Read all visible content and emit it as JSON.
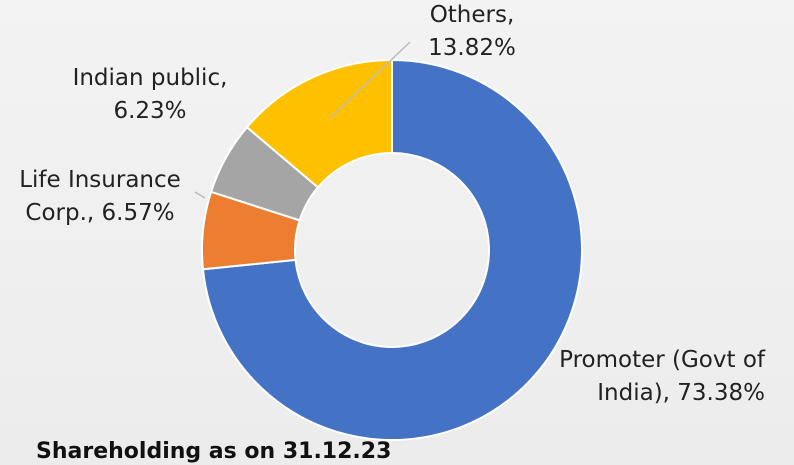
{
  "chart_data": {
    "type": "donut",
    "title": "Shareholding as on 31.12.23",
    "values": [
      73.38,
      6.57,
      6.23,
      13.82
    ],
    "value_labels": [
      [
        "Promoter (Govt of",
        "India), 73.38%"
      ],
      [
        "Life Insurance",
        "Corp., 6.57%"
      ],
      [
        "Indian public,",
        "6.23%"
      ],
      [
        "Others,",
        "13.82%"
      ]
    ],
    "colors": [
      "#4472c4",
      "#ed7d31",
      "#a5a5a5",
      "#ffc000"
    ]
  }
}
